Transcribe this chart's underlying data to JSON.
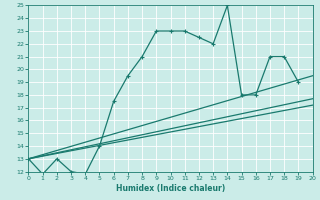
{
  "xlabel": "Humidex (Indice chaleur)",
  "bg_color": "#cbece8",
  "grid_color": "#ffffff",
  "line_color": "#1a7a6e",
  "xlim": [
    0,
    20
  ],
  "ylim": [
    12,
    25
  ],
  "xticks": [
    0,
    1,
    2,
    3,
    4,
    5,
    6,
    7,
    8,
    9,
    10,
    11,
    12,
    13,
    14,
    15,
    16,
    17,
    18,
    19,
    20
  ],
  "yticks": [
    12,
    13,
    14,
    15,
    16,
    17,
    18,
    19,
    20,
    21,
    22,
    23,
    24,
    25
  ],
  "main_line_x": [
    0,
    1,
    2,
    3,
    4,
    5,
    6,
    7,
    8,
    9,
    10,
    11,
    12,
    13,
    14,
    15,
    16,
    17,
    18,
    19
  ],
  "main_line_y": [
    13,
    11.8,
    13,
    12,
    11.8,
    14,
    17.5,
    19.5,
    21,
    23,
    23,
    23,
    22.5,
    22,
    25,
    18,
    18,
    21,
    21,
    19
  ],
  "reg_line1_x": [
    0,
    20
  ],
  "reg_line1_y": [
    13.0,
    19.5
  ],
  "reg_line2_x": [
    0,
    20
  ],
  "reg_line2_y": [
    13.0,
    17.7
  ],
  "reg_line3_x": [
    0,
    20
  ],
  "reg_line3_y": [
    13.0,
    17.2
  ]
}
